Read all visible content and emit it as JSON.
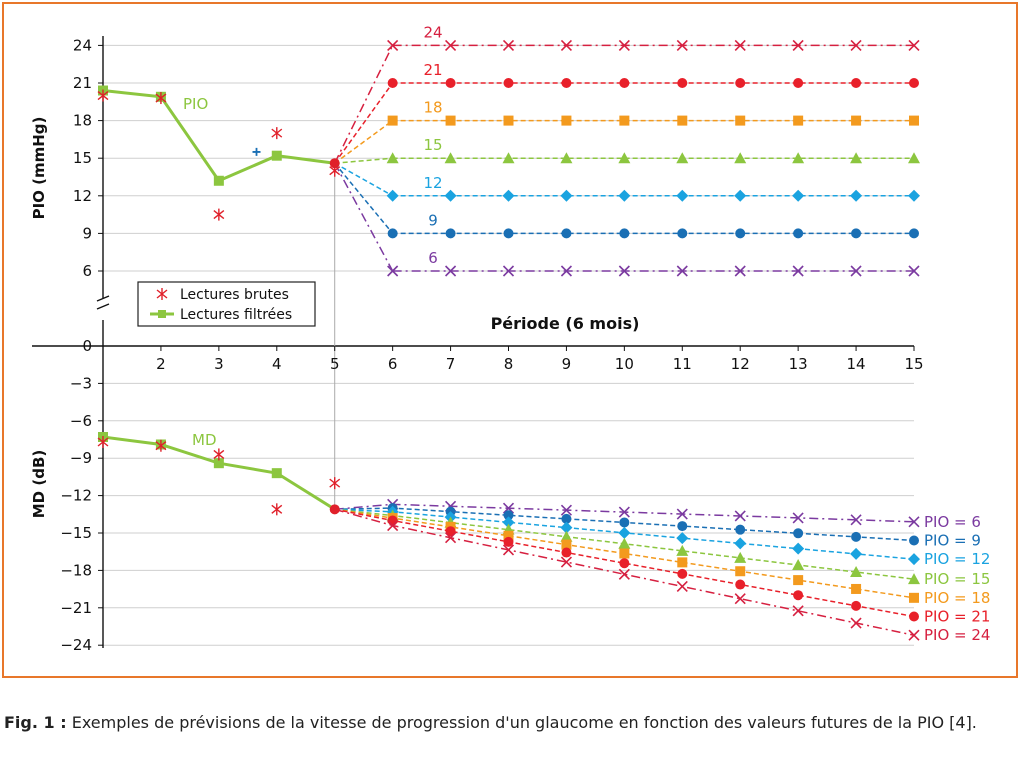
{
  "caption": {
    "label": "Fig. 1 :",
    "text": "Exemples de prévisions de la vitesse de progression d'un glaucome en fonction des valeurs futures de la PIO [4]."
  },
  "colors": {
    "frame": "#e8772a",
    "measured": "#8cc63f",
    "raw": "#e0202a",
    "pio24": "#d62040",
    "pio21": "#e8202a",
    "pio18": "#f39a1e",
    "pio15": "#8cc63f",
    "pio12": "#1aa3e0",
    "pio9": "#1a6fb4",
    "pio6": "#7b3aa0"
  },
  "chart_data": [
    {
      "type": "line",
      "panel": "PIO",
      "ylabel": "PIO (mmHg)",
      "xlabel": "Période (6 mois)",
      "series_label": "PIO",
      "yticks": [
        6,
        9,
        12,
        15,
        18,
        21,
        24
      ],
      "ylim": [
        3.5,
        25
      ],
      "legend": {
        "position": "bottom-left",
        "entries": [
          "Lectures brutes",
          "Lectures filtrées"
        ]
      },
      "raw_readings": [
        {
          "x": 1,
          "y": 20.0
        },
        {
          "x": 2,
          "y": 19.8
        },
        {
          "x": 3,
          "y": 10.5
        },
        {
          "x": 4,
          "y": 17.0
        },
        {
          "x": 5,
          "y": 14.0
        }
      ],
      "extra_marker": {
        "x": 3.65,
        "y": 15.5
      },
      "filtered": [
        {
          "x": 1,
          "y": 20.4
        },
        {
          "x": 2,
          "y": 19.9
        },
        {
          "x": 3,
          "y": 13.2
        },
        {
          "x": 4,
          "y": 15.2
        },
        {
          "x": 5,
          "y": 14.6
        }
      ],
      "forecasts": [
        {
          "label": "24",
          "value": 24,
          "marker": "x"
        },
        {
          "label": "21",
          "value": 21,
          "marker": "circle"
        },
        {
          "label": "18",
          "value": 18,
          "marker": "square"
        },
        {
          "label": "15",
          "value": 15,
          "marker": "triangle"
        },
        {
          "label": "12",
          "value": 12,
          "marker": "diamond"
        },
        {
          "label": "9",
          "value": 9,
          "marker": "circle"
        },
        {
          "label": "6",
          "value": 6,
          "marker": "x"
        }
      ]
    },
    {
      "type": "line",
      "panel": "MD",
      "ylabel": "MD (dB)",
      "series_label": "MD",
      "xticks": [
        2,
        3,
        4,
        5,
        6,
        7,
        8,
        9,
        10,
        11,
        12,
        13,
        14,
        15
      ],
      "yticks": [
        0,
        -3,
        -6,
        -9,
        -12,
        -15,
        -18,
        -21,
        -24
      ],
      "ylim": [
        -24,
        0
      ],
      "xlim": [
        1,
        15
      ],
      "raw_readings": [
        {
          "x": 1,
          "y": -7.7
        },
        {
          "x": 2,
          "y": -8.0
        },
        {
          "x": 3,
          "y": -8.7
        },
        {
          "x": 4,
          "y": -13.1
        },
        {
          "x": 5,
          "y": -11.0
        }
      ],
      "filtered": [
        {
          "x": 1,
          "y": -7.3
        },
        {
          "x": 2,
          "y": -7.9
        },
        {
          "x": 3,
          "y": -9.4
        },
        {
          "x": 4,
          "y": -10.2
        },
        {
          "x": 5,
          "y": -13.1
        }
      ],
      "forecasts": [
        {
          "label": "PIO = 6",
          "end": -14.1,
          "early": -12.7,
          "marker": "x"
        },
        {
          "label": "PIO = 9",
          "end": -15.6,
          "early": -13.0,
          "marker": "circle"
        },
        {
          "label": "PIO = 12",
          "end": -17.1,
          "early": -13.3,
          "marker": "diamond"
        },
        {
          "label": "PIO = 15",
          "end": -18.7,
          "early": -13.6,
          "marker": "triangle"
        },
        {
          "label": "PIO = 18",
          "end": -20.2,
          "early": -13.8,
          "marker": "square"
        },
        {
          "label": "PIO = 21",
          "end": -21.7,
          "early": -14.0,
          "marker": "circle"
        },
        {
          "label": "PIO = 24",
          "end": -23.2,
          "early": -14.4,
          "marker": "x"
        }
      ]
    }
  ]
}
